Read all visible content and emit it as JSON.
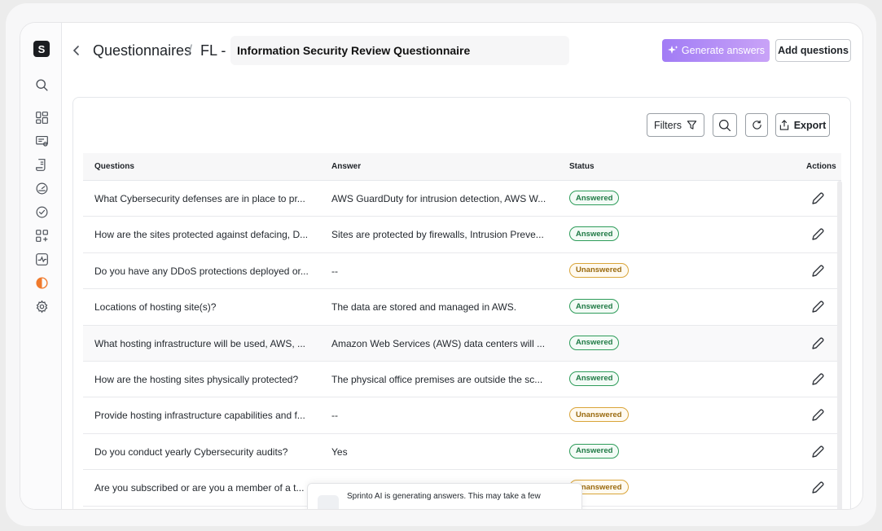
{
  "sidebar": {
    "logo": "S",
    "items": [
      {
        "icon": "search-icon"
      },
      {
        "icon": "dashboard-icon"
      },
      {
        "icon": "certificate-icon"
      },
      {
        "icon": "document-icon"
      },
      {
        "icon": "gauge-icon"
      },
      {
        "icon": "check-circle-icon"
      },
      {
        "icon": "apps-plus-icon"
      },
      {
        "icon": "activity-icon"
      },
      {
        "icon": "half-circle-icon",
        "color": "#f07a2c"
      },
      {
        "icon": "gear-icon"
      }
    ]
  },
  "header": {
    "breadcrumb_root": "Questionnaires",
    "separator": "/",
    "breadcrumb_prefix": "FL -",
    "title": "Information Security Review Questionnaire",
    "generate_label": "Generate answers",
    "add_label": "Add questions"
  },
  "toolbar": {
    "filters_label": "Filters",
    "export_label": "Export"
  },
  "table": {
    "columns": [
      "Questions",
      "Answer",
      "Status",
      "Actions"
    ],
    "rows": [
      {
        "question": "What Cybersecurity defenses are in place to pr...",
        "answer": "AWS GuardDuty for intrusion detection, AWS W...",
        "status": "Answered"
      },
      {
        "question": "How are the sites protected against defacing, D...",
        "answer": "Sites are protected by firewalls, Intrusion Preve...",
        "status": "Answered"
      },
      {
        "question": "Do you have any DDoS protections deployed or...",
        "answer": "--",
        "status": "Unanswered"
      },
      {
        "question": "Locations of hosting site(s)?",
        "answer": "The data are stored and managed in AWS.",
        "status": "Answered"
      },
      {
        "question": "What hosting infrastructure will be used, AWS, ...",
        "answer": "Amazon Web Services (AWS) data centers will ...",
        "status": "Answered"
      },
      {
        "question": "How are the hosting sites physically protected?",
        "answer": "The physical office premises are outside the sc...",
        "status": "Answered"
      },
      {
        "question": "Provide hosting infrastructure capabilities and f...",
        "answer": "--",
        "status": "Unanswered"
      },
      {
        "question": "Do you conduct yearly Cybersecurity audits?",
        "answer": "Yes",
        "status": "Answered"
      },
      {
        "question": "Are you subscribed or are you a member of a t...",
        "answer": "",
        "status": "Unanswered"
      }
    ]
  },
  "toast": {
    "text": "Sprinto AI is generating answers. This may take a few"
  },
  "colors": {
    "accent": "#a17cf5",
    "answered": "#2e9c5a",
    "unanswered": "#d9a53a"
  }
}
